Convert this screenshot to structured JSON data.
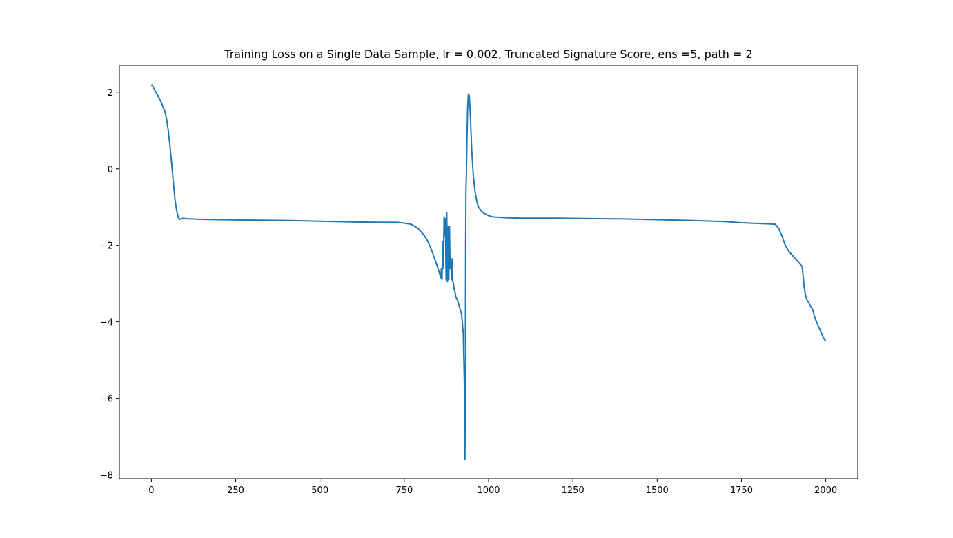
{
  "chart_data": {
    "type": "line",
    "title": "Training Loss on a Single Data Sample, lr = 0.002, Truncated Signature Score, ens =5, path = 2",
    "xlabel": "",
    "ylabel": "",
    "xlim": [
      -95,
      2095
    ],
    "ylim": [
      -8.1,
      2.7
    ],
    "xticks": [
      0,
      250,
      500,
      750,
      1000,
      1250,
      1500,
      1750,
      2000
    ],
    "yticks": [
      -8,
      -6,
      -4,
      -2,
      0,
      2
    ],
    "xtick_labels": [
      "0",
      "250",
      "500",
      "750",
      "1000",
      "1250",
      "1500",
      "1750",
      "2000"
    ],
    "ytick_labels": [
      "−8",
      "−6",
      "−4",
      "−2",
      "0",
      "2"
    ],
    "grid": false,
    "series": [
      {
        "color": "#1f77b4",
        "x": [
          0,
          5,
          10,
          20,
          30,
          40,
          45,
          50,
          55,
          60,
          65,
          70,
          75,
          80,
          85,
          90,
          95,
          100,
          110,
          120,
          150,
          200,
          300,
          400,
          500,
          600,
          700,
          730,
          750,
          770,
          790,
          800,
          810,
          820,
          830,
          840,
          850,
          855,
          858,
          860,
          862,
          864,
          866,
          868,
          870,
          872,
          874,
          876,
          878,
          880,
          882,
          884,
          886,
          888,
          890,
          892,
          894,
          896,
          898,
          900,
          903,
          906,
          910,
          915,
          920,
          925,
          928,
          930,
          931,
          932,
          933,
          934,
          936,
          938,
          940,
          943,
          946,
          950,
          955,
          960,
          965,
          970,
          980,
          990,
          1000,
          1010,
          1020,
          1040,
          1060,
          1100,
          1200,
          1300,
          1400,
          1500,
          1600,
          1700,
          1750,
          1800,
          1830,
          1850,
          1860,
          1870,
          1880,
          1890,
          1900,
          1910,
          1920,
          1930,
          1933,
          1936,
          1940,
          1945,
          1950,
          1955,
          1960,
          1965,
          1970,
          1975,
          1980,
          1985,
          1990,
          1995,
          2000
        ],
        "y": [
          2.2,
          2.15,
          2.05,
          1.9,
          1.72,
          1.5,
          1.3,
          1.0,
          0.6,
          0.15,
          -0.35,
          -0.8,
          -1.1,
          -1.28,
          -1.32,
          -1.3,
          -1.29,
          -1.3,
          -1.31,
          -1.31,
          -1.32,
          -1.33,
          -1.34,
          -1.35,
          -1.37,
          -1.39,
          -1.4,
          -1.4,
          -1.42,
          -1.45,
          -1.55,
          -1.65,
          -1.75,
          -1.9,
          -2.1,
          -2.35,
          -2.6,
          -2.75,
          -2.85,
          -2.6,
          -2.9,
          -1.9,
          -2.6,
          -1.25,
          -1.75,
          -1.3,
          -2.9,
          -1.15,
          -2.95,
          -1.5,
          -2.9,
          -1.5,
          -2.6,
          -2.4,
          -2.9,
          -2.35,
          -2.95,
          -3.0,
          -3.15,
          -3.2,
          -3.35,
          -3.4,
          -3.5,
          -3.65,
          -3.8,
          -4.3,
          -5.5,
          -7.6,
          -6.0,
          -2.0,
          -0.5,
          -0.3,
          0.8,
          1.6,
          1.95,
          1.9,
          1.4,
          0.5,
          -0.2,
          -0.6,
          -0.85,
          -1.0,
          -1.12,
          -1.18,
          -1.22,
          -1.25,
          -1.26,
          -1.27,
          -1.28,
          -1.29,
          -1.29,
          -1.3,
          -1.31,
          -1.33,
          -1.35,
          -1.38,
          -1.41,
          -1.43,
          -1.44,
          -1.45,
          -1.55,
          -1.75,
          -2.0,
          -2.15,
          -2.25,
          -2.35,
          -2.45,
          -2.55,
          -2.8,
          -3.1,
          -3.3,
          -3.45,
          -3.5,
          -3.6,
          -3.65,
          -3.8,
          -3.95,
          -4.05,
          -4.15,
          -4.25,
          -4.35,
          -4.45,
          -4.5
        ]
      }
    ]
  }
}
